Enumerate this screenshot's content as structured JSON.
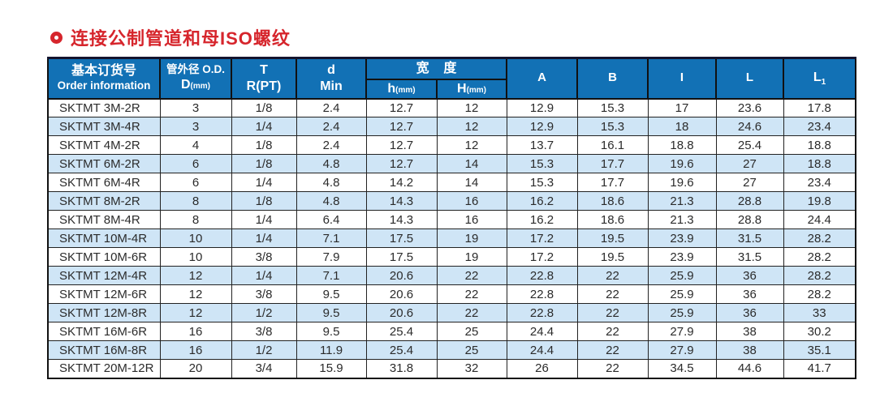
{
  "title": {
    "text": "连接公制管道和母ISO螺纹"
  },
  "colors": {
    "header_blue": "#1271b5",
    "row_alt_blue": "#cfe5f6",
    "title_red": "#d6252c"
  },
  "table": {
    "header": {
      "order_zh": "基本订货号",
      "order_en": "Order information",
      "od_zh": "管外径 O.D.",
      "od_main": "D",
      "od_unit": "(mm)",
      "t_line1": "T",
      "t_line2": "R(PT)",
      "d_line1": "d",
      "d_line2": "Min",
      "width_group": "宽    度",
      "h_main": "h",
      "h_unit": "(mm)",
      "H_main": "H",
      "H_unit": "(mm)",
      "a": "A",
      "b": "B",
      "i": "I",
      "l": "L",
      "l1_main": "L",
      "l1_sub": "1"
    },
    "rows": [
      [
        "SKTMT 3M-2R",
        "3",
        "1/8",
        "2.4",
        "12.7",
        "12",
        "12.9",
        "15.3",
        "17",
        "23.6",
        "17.8"
      ],
      [
        "SKTMT 3M-4R",
        "3",
        "1/4",
        "2.4",
        "12.7",
        "12",
        "12.9",
        "15.3",
        "18",
        "24.6",
        "23.4"
      ],
      [
        "SKTMT 4M-2R",
        "4",
        "1/8",
        "2.4",
        "12.7",
        "12",
        "13.7",
        "16.1",
        "18.8",
        "25.4",
        "18.8"
      ],
      [
        "SKTMT 6M-2R",
        "6",
        "1/8",
        "4.8",
        "12.7",
        "14",
        "15.3",
        "17.7",
        "19.6",
        "27",
        "18.8"
      ],
      [
        "SKTMT 6M-4R",
        "6",
        "1/4",
        "4.8",
        "14.2",
        "14",
        "15.3",
        "17.7",
        "19.6",
        "27",
        "23.4"
      ],
      [
        "SKTMT 8M-2R",
        "8",
        "1/8",
        "4.8",
        "14.3",
        "16",
        "16.2",
        "18.6",
        "21.3",
        "28.8",
        "19.8"
      ],
      [
        "SKTMT 8M-4R",
        "8",
        "1/4",
        "6.4",
        "14.3",
        "16",
        "16.2",
        "18.6",
        "21.3",
        "28.8",
        "24.4"
      ],
      [
        "SKTMT 10M-4R",
        "10",
        "1/4",
        "7.1",
        "17.5",
        "19",
        "17.2",
        "19.5",
        "23.9",
        "31.5",
        "28.2"
      ],
      [
        "SKTMT 10M-6R",
        "10",
        "3/8",
        "7.9",
        "17.5",
        "19",
        "17.2",
        "19.5",
        "23.9",
        "31.5",
        "28.2"
      ],
      [
        "SKTMT 12M-4R",
        "12",
        "1/4",
        "7.1",
        "20.6",
        "22",
        "22.8",
        "22",
        "25.9",
        "36",
        "28.2"
      ],
      [
        "SKTMT 12M-6R",
        "12",
        "3/8",
        "9.5",
        "20.6",
        "22",
        "22.8",
        "22",
        "25.9",
        "36",
        "28.2"
      ],
      [
        "SKTMT 12M-8R",
        "12",
        "1/2",
        "9.5",
        "20.6",
        "22",
        "22.8",
        "22",
        "25.9",
        "36",
        "33"
      ],
      [
        "SKTMT 16M-6R",
        "16",
        "3/8",
        "9.5",
        "25.4",
        "25",
        "24.4",
        "22",
        "27.9",
        "38",
        "30.2"
      ],
      [
        "SKTMT 16M-8R",
        "16",
        "1/2",
        "11.9",
        "25.4",
        "25",
        "24.4",
        "22",
        "27.9",
        "38",
        "35.1"
      ],
      [
        "SKTMT 20M-12R",
        "20",
        "3/4",
        "15.9",
        "31.8",
        "32",
        "26",
        "22",
        "34.5",
        "44.6",
        "41.7"
      ]
    ]
  }
}
